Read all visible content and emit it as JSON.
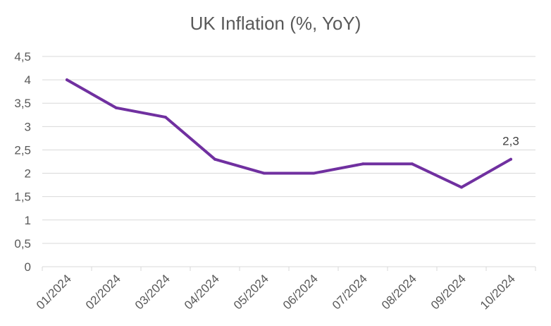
{
  "chart_data": {
    "type": "line",
    "title": "UK Inflation (%, YoY)",
    "xlabel": "",
    "ylabel": "",
    "categories": [
      "01/2024",
      "02/2024",
      "03/2024",
      "04/2024",
      "05/2024",
      "06/2024",
      "07/2024",
      "08/2024",
      "09/2024",
      "10/2024"
    ],
    "series": [
      {
        "values": [
          4.0,
          3.4,
          3.2,
          2.3,
          2.0,
          2.0,
          2.2,
          2.2,
          1.7,
          2.3
        ],
        "color": "#7030a0"
      }
    ],
    "ylim": [
      0,
      4.5
    ],
    "yticks": [
      "0",
      "0,5",
      "1",
      "1,5",
      "2",
      "2,5",
      "3",
      "3,5",
      "4",
      "4,5"
    ],
    "grid": true,
    "gridColor": "#d9d9d9",
    "data_labels": [
      {
        "index": 9,
        "text": "2,3"
      }
    ]
  }
}
